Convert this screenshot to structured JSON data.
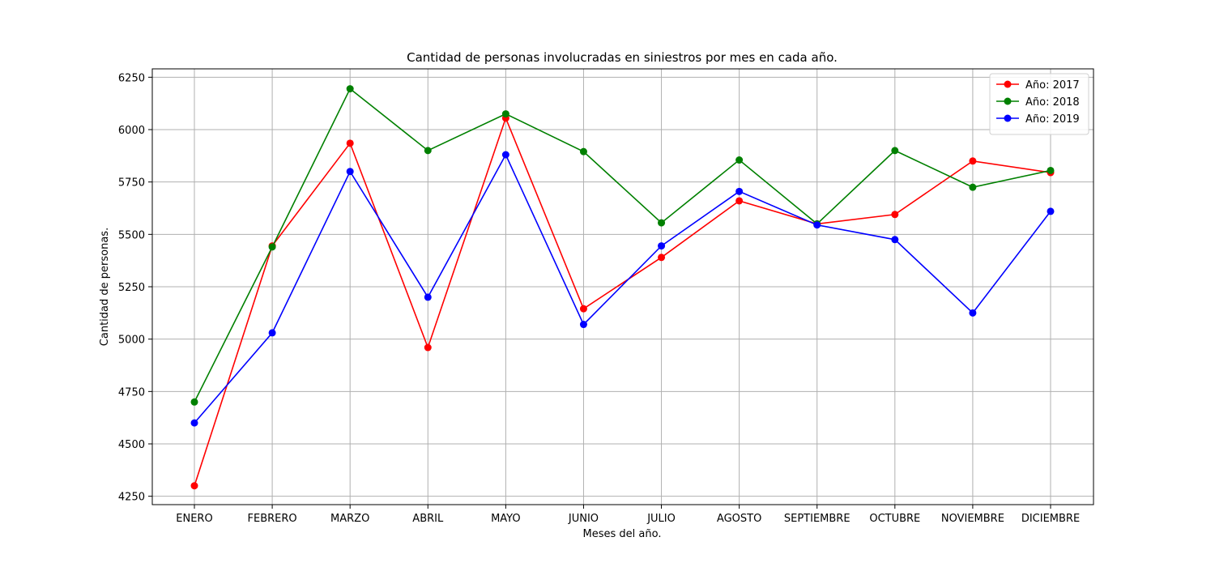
{
  "chart_data": {
    "type": "line",
    "title": "Cantidad de personas involucradas en siniestros por mes en cada año.",
    "xlabel": "Meses del año.",
    "ylabel": "Cantidad de personas.",
    "categories": [
      "ENERO",
      "FEBRERO",
      "MARZO",
      "ABRIL",
      "MAYO",
      "JUNIO",
      "JULIO",
      "AGOSTO",
      "SEPTIEMBRE",
      "OCTUBRE",
      "NOVIEMBRE",
      "DICIEMBRE"
    ],
    "ylim": [
      4210,
      6290
    ],
    "yticks": [
      4250,
      4500,
      4750,
      5000,
      5250,
      5500,
      5750,
      6000,
      6250
    ],
    "grid": true,
    "legend_position": "top-right",
    "series": [
      {
        "name": "Año: 2017",
        "color": "#ff0000",
        "values": [
          4300,
          5445,
          5935,
          4960,
          6055,
          5145,
          5390,
          5660,
          5550,
          5595,
          5850,
          5795
        ]
      },
      {
        "name": "Año: 2018",
        "color": "#008000",
        "values": [
          4700,
          5440,
          6195,
          5900,
          6075,
          5895,
          5555,
          5855,
          5550,
          5900,
          5725,
          5805
        ]
      },
      {
        "name": "Año: 2019",
        "color": "#0000ff",
        "values": [
          4600,
          5030,
          5800,
          5200,
          5880,
          5070,
          5445,
          5705,
          5545,
          5475,
          5125,
          5610
        ]
      }
    ]
  }
}
